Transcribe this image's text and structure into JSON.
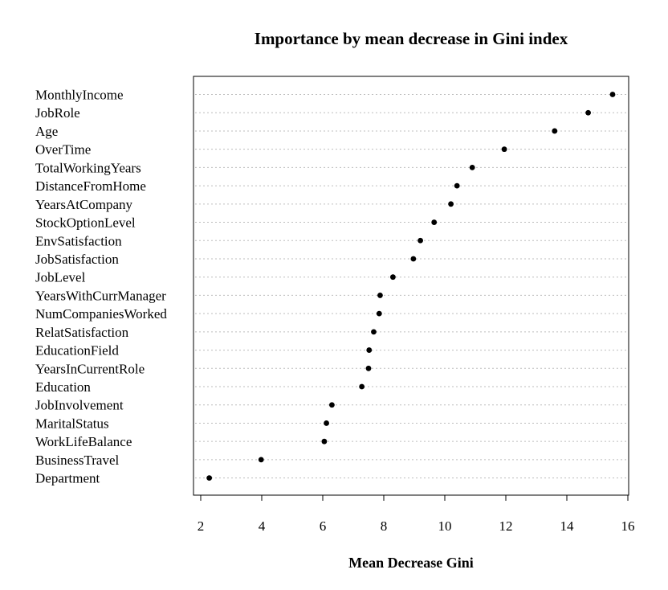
{
  "chart_data": {
    "type": "scatter",
    "title": "Importance by mean decrease in Gini index",
    "xlabel": "Mean Decrease Gini",
    "ylabel": "",
    "xlim": [
      1.8,
      16.1
    ],
    "xticks": [
      2,
      4,
      6,
      8,
      10,
      12,
      14,
      16
    ],
    "grid": "dotted horizontal guides",
    "legend": "none",
    "point_color": "#000000",
    "categories": [
      "MonthlyIncome",
      "JobRole",
      "Age",
      "OverTime",
      "TotalWorkingYears",
      "DistanceFromHome",
      "YearsAtCompany",
      "StockOptionLevel",
      "EnvSatisfaction",
      "JobSatisfaction",
      "JobLevel",
      "YearsWithCurrManager",
      "NumCompaniesWorked",
      "RelatSatisfaction",
      "EducationField",
      "YearsInCurrentRole",
      "Education",
      "JobInvolvement",
      "MaritalStatus",
      "WorkLifeBalance",
      "BusinessTravel",
      "Department"
    ],
    "values": [
      15.5,
      14.7,
      13.6,
      11.95,
      10.9,
      10.4,
      10.2,
      9.65,
      9.2,
      8.97,
      8.3,
      7.88,
      7.85,
      7.67,
      7.52,
      7.5,
      7.28,
      6.3,
      6.12,
      6.05,
      3.98,
      2.28
    ]
  }
}
